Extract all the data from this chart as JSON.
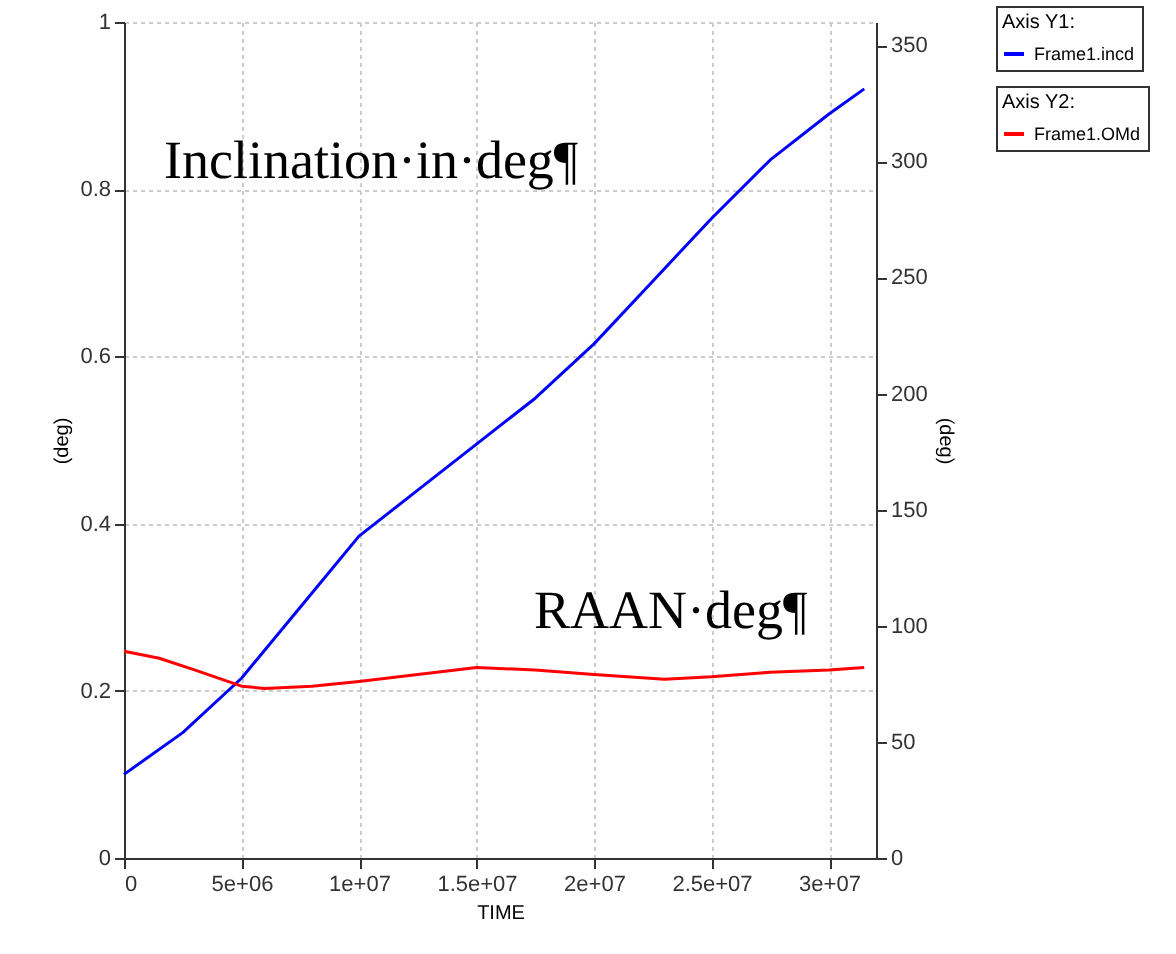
{
  "chart_data": {
    "type": "line",
    "xlabel": "TIME",
    "ylabel": "(deg)",
    "y2label": "(deg)",
    "annotations": [
      "Inclination·in·deg¶",
      "RAAN·deg¶",
      "Axis Y1:",
      "Axis Y2:"
    ],
    "xlim": [
      0,
      32000000
    ],
    "xticks": [
      0,
      {
        "value": 5000000,
        "label": "5e+06"
      },
      {
        "value": 10000000,
        "label": "1e+07"
      },
      {
        "value": 15000000,
        "label": "1.5e+07"
      },
      {
        "value": 20000000,
        "label": "2e+07"
      },
      {
        "value": 25000000,
        "label": "2.5e+07"
      },
      {
        "value": 30000000,
        "label": "3e+07"
      }
    ],
    "ylim": [
      0,
      1
    ],
    "yticks": [
      0,
      0.2,
      0.4,
      0.6,
      0.8,
      1
    ],
    "y2lim": [
      0,
      360
    ],
    "y2ticks": [
      0,
      50,
      100,
      150,
      200,
      250,
      300,
      350
    ],
    "grid": true,
    "legend": "right",
    "marker": "none",
    "line_style": "solid",
    "series": [
      {
        "name": "Frame1.incd",
        "color": "#0000ff",
        "x": [
          0,
          2500000,
          5000000,
          7500000,
          10000000,
          12500000,
          15000000,
          17500000,
          20000000,
          22500000,
          25000000,
          27500000,
          30000000,
          31500000
        ],
        "values": [
          0.1,
          0.15,
          0.215,
          0.3,
          0.385,
          0.44,
          0.495,
          0.55,
          0.615,
          0.69,
          0.765,
          0.835,
          0.89,
          0.92
        ]
      },
      {
        "name": "Frame1.OMd",
        "color": "#ff0000",
        "axis": "y2",
        "x": [
          0,
          1500000,
          3000000,
          5000000,
          6000000,
          8000000,
          10000000,
          12500000,
          15000000,
          17500000,
          20000000,
          23000000,
          25000000,
          27500000,
          30000000,
          31500000
        ],
        "values": [
          89,
          86,
          81,
          74,
          73,
          74,
          76,
          79,
          82,
          81,
          79,
          77,
          78,
          80,
          81,
          82
        ]
      }
    ]
  }
}
